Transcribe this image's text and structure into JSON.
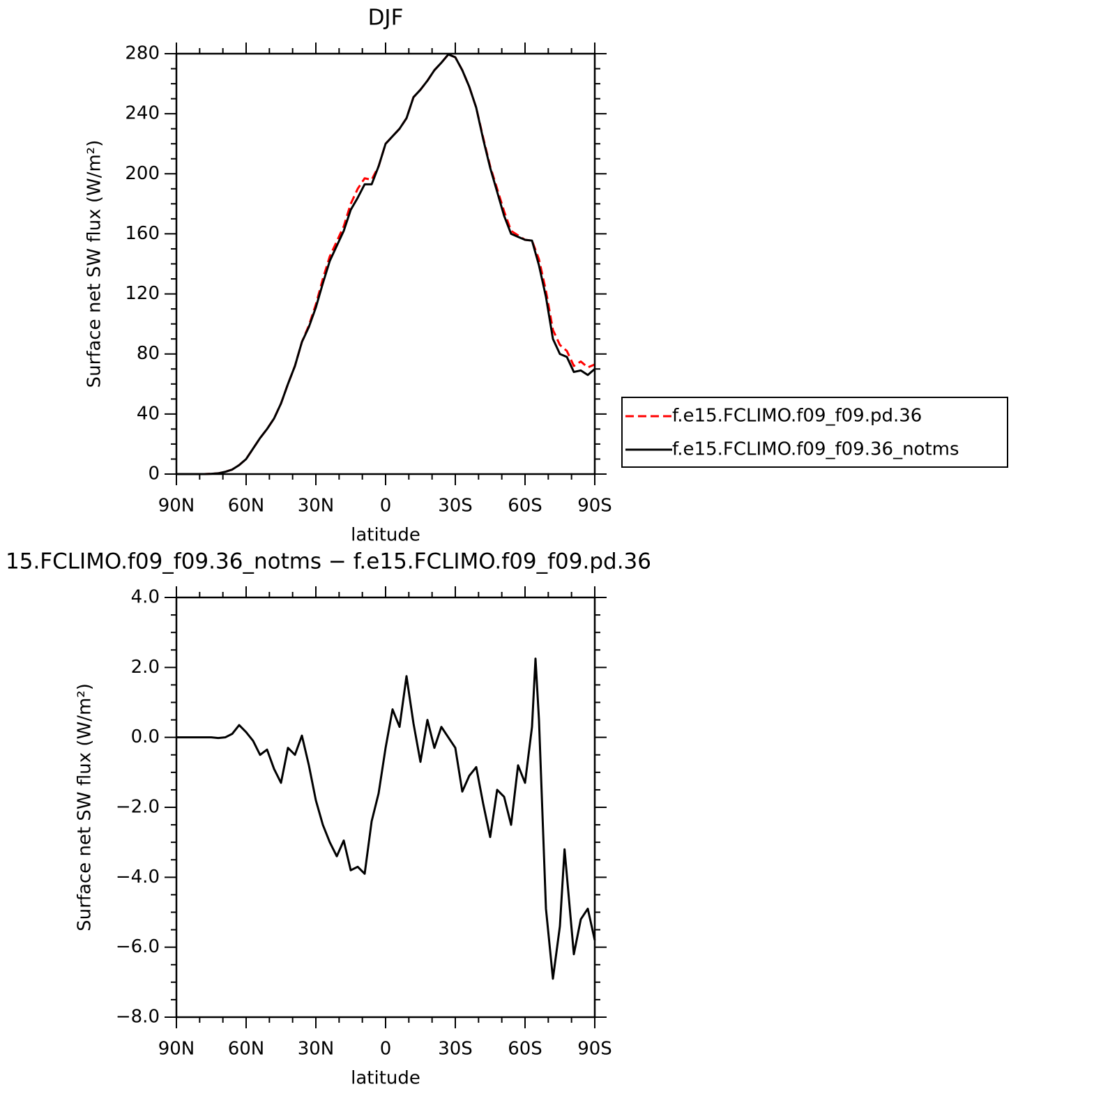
{
  "chart_data": [
    {
      "type": "line",
      "title": "DJF",
      "xlabel": "latitude",
      "ylabel": "Surface net SW flux (W/m²)",
      "x": [
        90,
        87,
        84,
        81,
        78,
        75,
        72,
        69,
        66,
        63,
        60,
        57,
        54,
        51,
        48,
        45,
        42,
        39,
        36,
        33,
        30,
        27,
        24,
        21,
        18,
        15,
        12,
        9,
        6,
        3,
        0,
        -3,
        -6,
        -9,
        -12,
        -15,
        -18,
        -21,
        -24,
        -27,
        -30,
        -33,
        -36,
        -39,
        -42,
        -45,
        -48,
        -51,
        -54,
        -57,
        -60,
        -63,
        -66,
        -69,
        -72,
        -75,
        -78,
        -81,
        -84,
        -87,
        -90
      ],
      "series": [
        {
          "name": "f.e15.FCLIMO.f09_f09.pd.36",
          "color": "#ff0000",
          "dash": true,
          "values": [
            0,
            0,
            0,
            0,
            0,
            0.2,
            0.5,
            1.5,
            3,
            6,
            10,
            17,
            24,
            30,
            37,
            47,
            60,
            72,
            88,
            99,
            113,
            130,
            145,
            155,
            165,
            180,
            190,
            197,
            196,
            205,
            220,
            225,
            230,
            237,
            251,
            256,
            262,
            269,
            274,
            279.5,
            277.6,
            269,
            258,
            244,
            224,
            205,
            190,
            175,
            162,
            159,
            156,
            155.5,
            143,
            122,
            96,
            86,
            82,
            72,
            75,
            71,
            73
          ]
        },
        {
          "name": "f.e15.FCLIMO.f09_f09.36_notms",
          "color": "#000000",
          "dash": false,
          "values": [
            0,
            0,
            0,
            0,
            0,
            0.2,
            0.5,
            1.5,
            3,
            6,
            10,
            17,
            24,
            30,
            37,
            47,
            60,
            72,
            88,
            98,
            111,
            127,
            142,
            152,
            162,
            176,
            184,
            193,
            193,
            205,
            220,
            225,
            230,
            237,
            251,
            256,
            262,
            269,
            274,
            279.5,
            277.6,
            269,
            258,
            244,
            223,
            204,
            188,
            172,
            160,
            158,
            156,
            155.5,
            139,
            118,
            90,
            80,
            78,
            68,
            69,
            66,
            70
          ]
        }
      ],
      "xlim": [
        90,
        -90
      ],
      "xticks": [
        {
          "value": 90,
          "label": "90N"
        },
        {
          "value": 60,
          "label": "60N"
        },
        {
          "value": 30,
          "label": "30N"
        },
        0,
        {
          "value": -30,
          "label": "30S"
        },
        {
          "value": -60,
          "label": "60S"
        },
        {
          "value": -90,
          "label": "90S"
        }
      ],
      "ylim": [
        0,
        280
      ],
      "yticks": [
        0,
        40,
        80,
        120,
        160,
        200,
        240,
        280
      ],
      "legend": "right"
    },
    {
      "type": "line",
      "title": "15.FCLIMO.f09_f09.36_notms − f.e15.FCLIMO.f09_f09.pd.36",
      "xlabel": "latitude",
      "ylabel": "Surface net SW flux (W/m²)",
      "x": [
        90,
        87,
        84,
        81,
        78,
        75,
        72,
        69,
        66,
        63,
        60,
        57,
        54,
        51,
        48,
        45,
        42,
        39,
        36,
        33,
        30,
        27,
        24,
        21,
        18,
        15,
        12,
        9,
        6,
        3,
        0,
        -3,
        -6,
        -9,
        -12,
        -15,
        -18,
        -21,
        -24,
        -27,
        -30,
        -33,
        -36,
        -39,
        -42,
        -45,
        -48,
        -51,
        -54,
        -57,
        -60,
        -63,
        -64.5,
        -66,
        -69,
        -72,
        -75,
        -77,
        -81,
        -84,
        -87,
        -90
      ],
      "series": [
        {
          "color": "#000000",
          "dash": false,
          "values": [
            0,
            0,
            0,
            0,
            0,
            0,
            -0.02,
            0,
            0.1,
            0.35,
            0.15,
            -0.1,
            -0.5,
            -0.35,
            -0.9,
            -1.3,
            -0.3,
            -0.5,
            0.05,
            -0.8,
            -1.8,
            -2.5,
            -3.0,
            -3.4,
            -2.95,
            -3.8,
            -3.7,
            -3.9,
            -2.4,
            -1.6,
            -0.3,
            0.8,
            0.3,
            1.75,
            0.4,
            -0.7,
            0.5,
            -0.3,
            0.3,
            0.0,
            -0.3,
            -1.55,
            -1.1,
            -0.85,
            -1.9,
            -2.85,
            -1.5,
            -1.7,
            -2.5,
            -0.8,
            -1.3,
            0.3,
            2.25,
            0.5,
            -4.9,
            -6.9,
            -5.4,
            -3.2,
            -6.2,
            -5.2,
            -4.9,
            -5.8
          ]
        }
      ],
      "xlim": [
        90,
        -90
      ],
      "xticks": [
        {
          "value": 90,
          "label": "90N"
        },
        {
          "value": 60,
          "label": "60N"
        },
        {
          "value": 30,
          "label": "30N"
        },
        0,
        {
          "value": -30,
          "label": "30S"
        },
        {
          "value": -60,
          "label": "60S"
        },
        {
          "value": -90,
          "label": "90S"
        }
      ],
      "ylim": [
        -8,
        4
      ],
      "yticks": [
        {
          "value": -8,
          "label": "−8.0"
        },
        {
          "value": -6,
          "label": "−6.0"
        },
        {
          "value": -4,
          "label": "−4.0"
        },
        {
          "value": -2,
          "label": "−2.0"
        },
        {
          "value": 0,
          "label": "0.0"
        },
        {
          "value": 2,
          "label": "2.0"
        },
        {
          "value": 4,
          "label": "4.0"
        }
      ]
    }
  ]
}
